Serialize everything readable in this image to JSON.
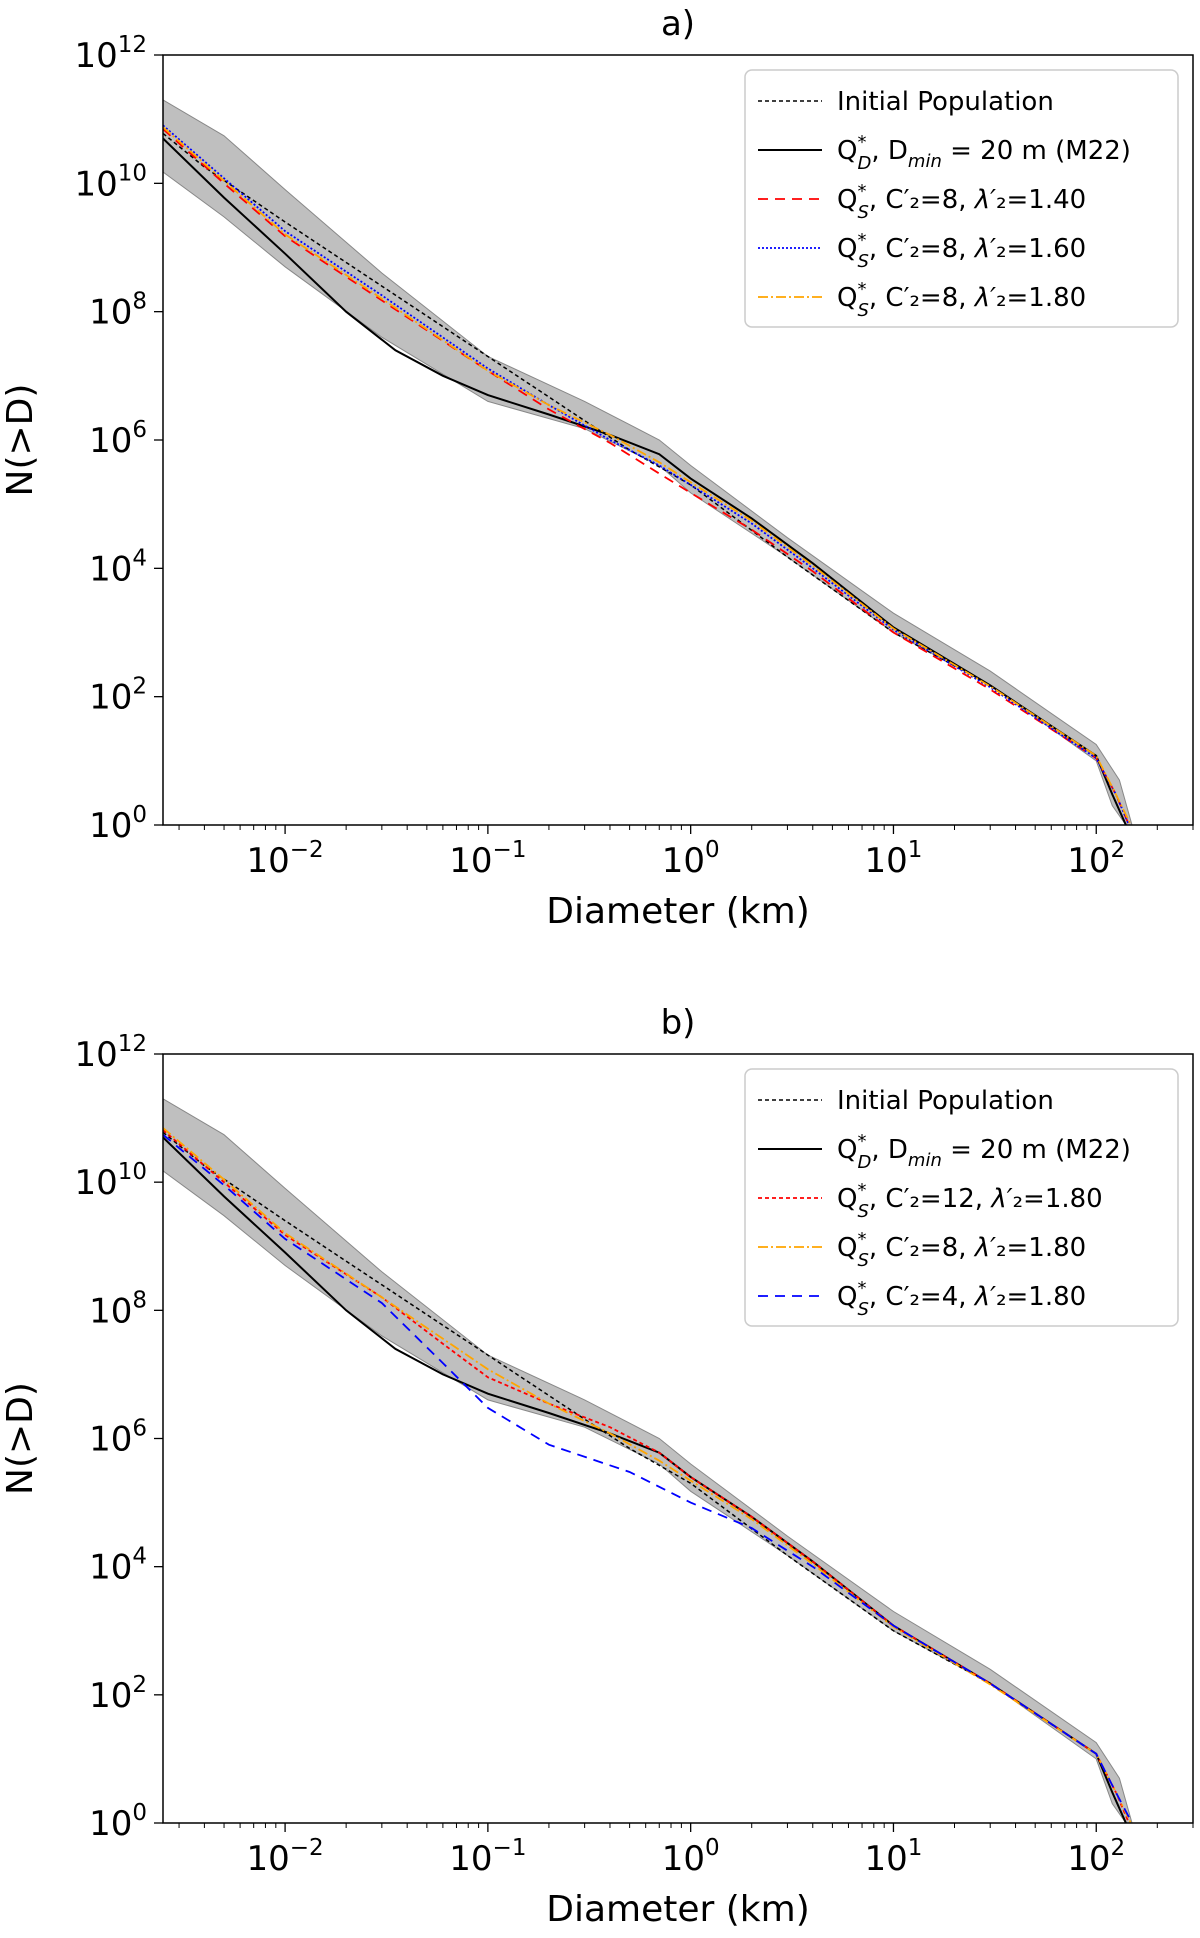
{
  "chart_data": [
    {
      "type": "line",
      "title": "a)",
      "xlabel": "Diameter (km)",
      "ylabel": "N(>D)",
      "xscale": "log",
      "yscale": "log",
      "xlim": [
        0.0025,
        300
      ],
      "ylim": [
        1,
        1000000000000.0
      ],
      "x_ticks": [
        {
          "value": 0.01,
          "base": "10",
          "exp": "−2"
        },
        {
          "value": 0.1,
          "base": "10",
          "exp": "−1"
        },
        {
          "value": 1,
          "base": "10",
          "exp": "0"
        },
        {
          "value": 10,
          "base": "10",
          "exp": "1"
        },
        {
          "value": 100,
          "base": "10",
          "exp": "2"
        }
      ],
      "y_ticks": [
        {
          "value": 1,
          "base": "10",
          "exp": "0"
        },
        {
          "value": 100,
          "base": "10",
          "exp": "2"
        },
        {
          "value": 10000,
          "base": "10",
          "exp": "4"
        },
        {
          "value": 1000000,
          "base": "10",
          "exp": "6"
        },
        {
          "value": 100000000,
          "base": "10",
          "exp": "8"
        },
        {
          "value": 10000000000,
          "base": "10",
          "exp": "10"
        },
        {
          "value": 1000000000000,
          "base": "10",
          "exp": "12"
        }
      ],
      "legend_position": "top-right",
      "band": {
        "color": "#a9a9a9",
        "upper": {
          "x": [
            0.0025,
            0.005,
            0.01,
            0.03,
            0.1,
            0.3,
            0.7,
            1,
            3,
            10,
            30,
            100,
            130,
            150
          ],
          "y": [
            200000000000.0,
            55000000000.0,
            8000000000.0,
            400000000.0,
            20000000.0,
            4000000.0,
            1000000.0,
            400000.0,
            30000.0,
            2000,
            250,
            18,
            5,
            1
          ]
        },
        "lower": {
          "x": [
            0.0025,
            0.005,
            0.01,
            0.03,
            0.1,
            0.3,
            0.7,
            1,
            3,
            10,
            30,
            100,
            120,
            140
          ],
          "y": [
            15000000000.0,
            3000000000.0,
            500000000.0,
            40000000.0,
            4000000.0,
            1500000.0,
            400000.0,
            150000.0,
            15000.0,
            1000,
            150,
            10,
            2,
            1
          ]
        }
      },
      "series": [
        {
          "name": "Initial Population",
          "color": "#000000",
          "dash": "4,3",
          "width": 1.5,
          "x": [
            0.0025,
            0.004,
            0.01,
            0.03,
            0.1,
            0.3,
            0.5,
            1,
            3,
            10,
            30,
            100,
            120,
            140
          ],
          "y": [
            60000000000.0,
            18000000000.0,
            2500000000.0,
            250000000.0,
            20000000.0,
            2000000.0,
            700000.0,
            200000.0,
            15000.0,
            1000,
            150,
            12,
            3,
            1
          ]
        },
        {
          "name": "Q*D, Dmin = 20 m (M22)",
          "color": "#000000",
          "dash": "",
          "width": 2,
          "x": [
            0.0025,
            0.005,
            0.01,
            0.02,
            0.035,
            0.06,
            0.1,
            0.2,
            0.4,
            0.7,
            1,
            2,
            4,
            10,
            30,
            100,
            120,
            140
          ],
          "y": [
            50000000000.0,
            6000000000.0,
            800000000.0,
            100000000.0,
            25000000.0,
            10000000.0,
            5000000.0,
            2500000.0,
            1200000.0,
            600000.0,
            250000.0,
            60000.0,
            12000.0,
            1200,
            150,
            12,
            3,
            1
          ]
        },
        {
          "name": "Q*S, C′2=8, λ′2=1.40",
          "color": "#ff0000",
          "dash": "10,7",
          "width": 1.8,
          "x": [
            0.0025,
            0.005,
            0.01,
            0.03,
            0.1,
            0.2,
            0.4,
            0.7,
            1,
            2,
            4,
            10,
            30,
            100,
            125,
            145
          ],
          "y": [
            70000000000.0,
            10000000000.0,
            1500000000.0,
            150000000.0,
            12000000.0,
            3000000.0,
            900000.0,
            300000.0,
            150000.0,
            40000.0,
            9000.0,
            1000,
            130,
            11,
            3,
            1
          ]
        },
        {
          "name": "Q*S, C′2=8, λ′2=1.60",
          "color": "#0000ff",
          "dash": "2,2",
          "width": 1.8,
          "x": [
            0.0025,
            0.005,
            0.01,
            0.03,
            0.1,
            0.2,
            0.4,
            0.7,
            1,
            2,
            4,
            10,
            30,
            100,
            125,
            145
          ],
          "y": [
            80000000000.0,
            12000000000.0,
            1800000000.0,
            180000000.0,
            13000000.0,
            3500000.0,
            1000000.0,
            400000.0,
            200000.0,
            50000.0,
            10000.0,
            1100,
            140,
            11,
            3,
            1
          ]
        },
        {
          "name": "Q*S, C′2=8, λ′2=1.80",
          "color": "#ffa500",
          "dash": "10,3,2,3",
          "width": 1.8,
          "x": [
            0.0025,
            0.005,
            0.01,
            0.03,
            0.1,
            0.2,
            0.4,
            0.7,
            1,
            2,
            4,
            10,
            30,
            100,
            125,
            148
          ],
          "y": [
            75000000000.0,
            11000000000.0,
            1600000000.0,
            160000000.0,
            12000000.0,
            3500000.0,
            1200000.0,
            450000.0,
            220000.0,
            55000.0,
            11000.0,
            1150,
            145,
            12,
            3,
            1
          ]
        }
      ],
      "legend": [
        {
          "main": "Initial Population"
        },
        {
          "q": "Q",
          "q_sub": "D",
          "rest": ", D",
          "sub2": "min",
          "tail": " = 20 m (M22)"
        },
        {
          "q": "Q",
          "q_sub": "S",
          "rest": ", C′₂=8, ",
          "lambda": "λ′",
          "tail": "₂=1.40"
        },
        {
          "q": "Q",
          "q_sub": "S",
          "rest": ", C′₂=8, ",
          "lambda": "λ′",
          "tail": "₂=1.60"
        },
        {
          "q": "Q",
          "q_sub": "S",
          "rest": ", C′₂=8, ",
          "lambda": "λ′",
          "tail": "₂=1.80"
        }
      ]
    },
    {
      "type": "line",
      "title": "b)",
      "xlabel": "Diameter (km)",
      "ylabel": "N(>D)",
      "xscale": "log",
      "yscale": "log",
      "xlim": [
        0.0025,
        300
      ],
      "ylim": [
        1,
        1000000000000.0
      ],
      "x_ticks": [
        {
          "value": 0.01,
          "base": "10",
          "exp": "−2"
        },
        {
          "value": 0.1,
          "base": "10",
          "exp": "−1"
        },
        {
          "value": 1,
          "base": "10",
          "exp": "0"
        },
        {
          "value": 10,
          "base": "10",
          "exp": "1"
        },
        {
          "value": 100,
          "base": "10",
          "exp": "2"
        }
      ],
      "y_ticks": [
        {
          "value": 1,
          "base": "10",
          "exp": "0"
        },
        {
          "value": 100,
          "base": "10",
          "exp": "2"
        },
        {
          "value": 10000,
          "base": "10",
          "exp": "4"
        },
        {
          "value": 1000000,
          "base": "10",
          "exp": "6"
        },
        {
          "value": 100000000,
          "base": "10",
          "exp": "8"
        },
        {
          "value": 10000000000,
          "base": "10",
          "exp": "10"
        },
        {
          "value": 1000000000000,
          "base": "10",
          "exp": "12"
        }
      ],
      "legend_position": "top-right",
      "band": {
        "color": "#a9a9a9",
        "upper": {
          "x": [
            0.0025,
            0.005,
            0.01,
            0.03,
            0.1,
            0.3,
            0.7,
            1,
            3,
            10,
            30,
            100,
            130,
            150
          ],
          "y": [
            200000000000.0,
            55000000000.0,
            8000000000.0,
            400000000.0,
            20000000.0,
            4000000.0,
            1000000.0,
            400000.0,
            30000.0,
            2000,
            250,
            18,
            5,
            1
          ]
        },
        "lower": {
          "x": [
            0.0025,
            0.005,
            0.01,
            0.03,
            0.1,
            0.3,
            0.7,
            1,
            3,
            10,
            30,
            100,
            120,
            140
          ],
          "y": [
            15000000000.0,
            3000000000.0,
            500000000.0,
            40000000.0,
            4000000.0,
            1500000.0,
            400000.0,
            150000.0,
            15000.0,
            1000,
            150,
            10,
            2,
            1
          ]
        }
      },
      "series": [
        {
          "name": "Initial Population",
          "color": "#000000",
          "dash": "4,3",
          "width": 1.5,
          "x": [
            0.0025,
            0.004,
            0.01,
            0.03,
            0.1,
            0.3,
            0.5,
            1,
            3,
            10,
            30,
            100,
            120,
            140
          ],
          "y": [
            60000000000.0,
            18000000000.0,
            2500000000.0,
            250000000.0,
            20000000.0,
            2000000.0,
            700000.0,
            200000.0,
            15000.0,
            1000,
            150,
            12,
            3,
            1
          ]
        },
        {
          "name": "Q*D, Dmin = 20 m (M22)",
          "color": "#000000",
          "dash": "",
          "width": 2,
          "x": [
            0.0025,
            0.005,
            0.01,
            0.02,
            0.035,
            0.06,
            0.1,
            0.2,
            0.4,
            0.7,
            1,
            2,
            4,
            10,
            30,
            100,
            120,
            140
          ],
          "y": [
            50000000000.0,
            6000000000.0,
            800000000.0,
            100000000.0,
            25000000.0,
            10000000.0,
            5000000.0,
            2500000.0,
            1200000.0,
            600000.0,
            250000.0,
            60000.0,
            12000.0,
            1200,
            150,
            12,
            3,
            1
          ]
        },
        {
          "name": "Q*S, C′2=12, λ′2=1.80",
          "color": "#ff0000",
          "dash": "4,3",
          "width": 1.8,
          "x": [
            0.0025,
            0.005,
            0.01,
            0.03,
            0.06,
            0.1,
            0.2,
            0.4,
            0.7,
            1,
            2,
            4,
            10,
            30,
            100,
            125,
            145
          ],
          "y": [
            65000000000.0,
            10000000000.0,
            1500000000.0,
            160000000.0,
            30000000.0,
            9000000.0,
            3500000.0,
            1500000.0,
            600000.0,
            250000.0,
            60000.0,
            12000.0,
            1200,
            150,
            12,
            3,
            1
          ]
        },
        {
          "name": "Q*S, C′2=8, λ′2=1.80",
          "color": "#ffa500",
          "dash": "10,3,2,3",
          "width": 1.8,
          "x": [
            0.0025,
            0.005,
            0.01,
            0.03,
            0.1,
            0.2,
            0.4,
            0.7,
            1,
            2,
            4,
            10,
            30,
            100,
            125,
            148
          ],
          "y": [
            70000000000.0,
            11000000000.0,
            1600000000.0,
            160000000.0,
            12000000.0,
            3500000.0,
            1200000.0,
            450000.0,
            220000.0,
            55000.0,
            11000.0,
            1150,
            145,
            12,
            3,
            1
          ]
        },
        {
          "name": "Q*S, C′2=4, λ′2=1.80",
          "color": "#0000ff",
          "dash": "10,7",
          "width": 1.8,
          "x": [
            0.0025,
            0.005,
            0.01,
            0.03,
            0.06,
            0.1,
            0.2,
            0.5,
            1,
            2,
            4,
            10,
            30,
            100,
            125,
            150
          ],
          "y": [
            55000000000.0,
            9000000000.0,
            1300000000.0,
            130000000.0,
            15000000.0,
            3000000.0,
            800000.0,
            300000.0,
            100000.0,
            40000.0,
            10000.0,
            1200,
            150,
            12,
            3,
            1
          ]
        }
      ],
      "legend": [
        {
          "main": "Initial Population"
        },
        {
          "q": "Q",
          "q_sub": "D",
          "rest": ", D",
          "sub2": "min",
          "tail": " = 20 m (M22)"
        },
        {
          "q": "Q",
          "q_sub": "S",
          "rest": ", C′₂=12, ",
          "lambda": "λ′",
          "tail": "₂=1.80"
        },
        {
          "q": "Q",
          "q_sub": "S",
          "rest": ", C′₂=8, ",
          "lambda": "λ′",
          "tail": "₂=1.80"
        },
        {
          "q": "Q",
          "q_sub": "S",
          "rest": ", C′₂=4, ",
          "lambda": "λ′",
          "tail": "₂=1.80"
        }
      ]
    }
  ]
}
